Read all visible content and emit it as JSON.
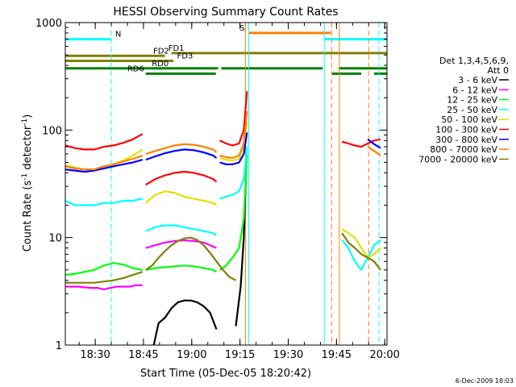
{
  "chart_data": {
    "type": "line",
    "title": "HESSI Observing Summary Count Rates",
    "xlabel": "Start Time (05-Dec-05 18:20:42)",
    "ylabel_main": "Count Rate (s",
    "ylabel_sup": "-1",
    "ylabel_tail": " detector",
    "ylabel_end": ")",
    "yscale": "log",
    "ylim": [
      1,
      1000
    ],
    "xlim_minutes": [
      0,
      100
    ],
    "x_tick_labels": [
      "18:30",
      "18:45",
      "19:00",
      "19:15",
      "19:30",
      "19:45",
      "20:00"
    ],
    "x_tick_minutes": [
      9.3,
      24.3,
      39.3,
      54.3,
      69.3,
      84.3,
      99.3
    ],
    "y_tick_labels": [
      "1",
      "10",
      "100",
      "1000"
    ],
    "y_tick_values": [
      1,
      10,
      100,
      1000
    ],
    "legend_header": [
      "Det 1,3,4,5,6,9,",
      "Att 0"
    ],
    "series": [
      {
        "name": "3 - 6 keV",
        "color": "#000000",
        "segments": [
          {
            "x": [
              27.5,
              29,
              31,
              33,
              35,
              37,
              39,
              41,
              43,
              45,
              47
            ],
            "y": [
              1.0,
              1.6,
              1.8,
              2.2,
              2.5,
              2.6,
              2.6,
              2.5,
              2.3,
              2.0,
              1.4
            ]
          },
          {
            "x": [
              53,
              54.5,
              55.5,
              56.2
            ],
            "y": [
              1.5,
              3.5,
              10,
              40
            ]
          }
        ]
      },
      {
        "name": "6 - 12 keV",
        "color": "#ff00ff",
        "segments": [
          {
            "x": [
              0,
              4,
              8,
              10,
              12,
              14,
              16,
              18,
              20,
              22,
              24
            ],
            "y": [
              3.5,
              3.5,
              3.4,
              3.4,
              3.3,
              3.4,
              3.5,
              3.5,
              3.5,
              3.6,
              3.6
            ]
          },
          {
            "x": [
              25,
              28,
              31,
              34,
              37,
              40,
              43,
              45,
              47
            ],
            "y": [
              8.0,
              8.5,
              9.0,
              9.3,
              9.4,
              9.3,
              9.0,
              8.5,
              8.0
            ]
          }
        ]
      },
      {
        "name": "12 - 25 keV",
        "color": "#00ff00",
        "segments": [
          {
            "x": [
              0,
              3,
              6,
              9,
              12,
              15,
              18,
              21,
              24
            ],
            "y": [
              4.5,
              4.6,
              4.8,
              5.0,
              5.5,
              5.8,
              5.6,
              5.2,
              5.0
            ]
          },
          {
            "x": [
              25,
              28,
              31,
              34,
              37,
              40,
              43,
              46,
              47
            ],
            "y": [
              5.0,
              5.2,
              5.3,
              5.4,
              5.5,
              5.4,
              5.2,
              5.0,
              4.8
            ]
          },
          {
            "x": [
              48,
              50,
              52,
              54,
              55.5,
              56.5
            ],
            "y": [
              5.0,
              5.5,
              6.5,
              8.0,
              15,
              60
            ]
          }
        ]
      },
      {
        "name": "25 - 50 keV",
        "color": "#00ffff",
        "segments": [
          {
            "x": [
              0,
              3,
              6,
              9,
              12,
              15,
              18,
              21,
              24
            ],
            "y": [
              22,
              20,
              20,
              20,
              21,
              21,
              22,
              22,
              23
            ]
          },
          {
            "x": [
              25,
              28,
              31,
              34,
              37,
              40,
              43,
              46,
              47
            ],
            "y": [
              11.5,
              12.5,
              13,
              13,
              12.5,
              12,
              11.5,
              11,
              10.5
            ]
          },
          {
            "x": [
              48,
              50,
              52,
              54,
              55.5,
              56.5
            ],
            "y": [
              23,
              24,
              25,
              27,
              35,
              70
            ]
          },
          {
            "x": [
              86,
              88,
              90,
              92,
              94,
              96,
              98
            ],
            "y": [
              9.5,
              8.0,
              6.0,
              5.0,
              6.5,
              8.5,
              9.5
            ]
          }
        ]
      },
      {
        "name": "50 - 100 keV",
        "color": "#e0e000",
        "segments": [
          {
            "x": [
              0,
              3,
              6,
              9,
              12,
              15,
              18,
              21,
              24
            ],
            "y": [
              47,
              45,
              43,
              43,
              45,
              48,
              52,
              58,
              66
            ]
          },
          {
            "x": [
              25,
              28,
              31,
              34,
              37,
              40,
              43,
              46,
              47
            ],
            "y": [
              21,
              25,
              27,
              26,
              24,
              23,
              22,
              21,
              20
            ]
          },
          {
            "x": [
              48,
              50,
              52,
              54,
              55.5,
              56.5
            ],
            "y": [
              55,
              53,
              52,
              54,
              70,
              120
            ]
          },
          {
            "x": [
              86,
              88,
              90,
              92,
              94,
              96,
              98
            ],
            "y": [
              12,
              11,
              10,
              8,
              6.5,
              7,
              8
            ]
          }
        ]
      },
      {
        "name": "100 - 300 keV",
        "color": "#ff0000",
        "segments": [
          {
            "x": [
              0,
              3,
              6,
              9,
              12,
              15,
              18,
              21,
              24
            ],
            "y": [
              72,
              68,
              66,
              66,
              70,
              72,
              76,
              82,
              92
            ]
          },
          {
            "x": [
              25,
              28,
              31,
              34,
              37,
              40,
              43,
              46,
              47
            ],
            "y": [
              31,
              35,
              38,
              40,
              41,
              40,
              38,
              35,
              33
            ]
          },
          {
            "x": [
              48,
              50,
              52,
              54,
              55.5,
              56.5
            ],
            "y": [
              80,
              75,
              72,
              75,
              100,
              230
            ]
          },
          {
            "x": [
              86,
              88,
              90,
              92,
              94,
              96,
              98
            ],
            "y": [
              78,
              75,
              72,
              70,
              75,
              80,
              82
            ]
          }
        ]
      },
      {
        "name": "300 - 800 keV",
        "color": "#0000ff",
        "segments": [
          {
            "x": [
              0,
              3,
              6,
              9,
              12,
              15,
              18,
              21,
              24
            ],
            "y": [
              43,
              42,
              41,
              42,
              44,
              46,
              48,
              50,
              53
            ]
          },
          {
            "x": [
              25,
              28,
              31,
              34,
              37,
              40,
              43,
              46,
              47
            ],
            "y": [
              53,
              57,
              61,
              64,
              66,
              65,
              62,
              58,
              55
            ]
          },
          {
            "x": [
              48,
              50,
              52,
              54,
              55.5,
              56.5
            ],
            "y": [
              50,
              48,
              48,
              50,
              60,
              95
            ]
          },
          {
            "x": [
              94,
              96,
              98
            ],
            "y": [
              82,
              74,
              68
            ]
          }
        ]
      },
      {
        "name": "800 - 7000 keV",
        "color": "#ff8000",
        "segments": [
          {
            "x": [
              0,
              3,
              6,
              9,
              12,
              15,
              18,
              21,
              24
            ],
            "y": [
              46,
              44,
              43,
              43,
              46,
              48,
              51,
              54,
              58
            ]
          },
          {
            "x": [
              25,
              28,
              31,
              34,
              37,
              40,
              43,
              46,
              47
            ],
            "y": [
              60,
              64,
              68,
              72,
              74,
              73,
              70,
              66,
              62
            ]
          },
          {
            "x": [
              48,
              50,
              52,
              54,
              55.5,
              56.5
            ],
            "y": [
              58,
              56,
              55,
              58,
              75,
              150
            ]
          },
          {
            "x": [
              94,
              96,
              98
            ],
            "y": [
              70,
              64,
              58
            ]
          }
        ]
      },
      {
        "name": "7000 - 20000 keV",
        "color": "#808000",
        "segments": [
          {
            "x": [
              0,
              3,
              6,
              9,
              12,
              15,
              18,
              21,
              24
            ],
            "y": [
              3.8,
              3.8,
              3.8,
              3.8,
              3.9,
              4.0,
              4.2,
              4.5,
              4.8
            ]
          },
          {
            "x": [
              25,
              27,
              29,
              31,
              33,
              35,
              37,
              39,
              41,
              43,
              45,
              47,
              49,
              51,
              53
            ],
            "y": [
              5.0,
              5.5,
              6.5,
              7.5,
              8.5,
              9.3,
              9.8,
              10,
              9.5,
              8.5,
              7.2,
              6.0,
              5.0,
              4.3,
              4.0
            ]
          },
          {
            "x": [
              86,
              88,
              90,
              92,
              94,
              96,
              98
            ],
            "y": [
              11,
              9,
              8,
              7,
              6.5,
              6,
              5
            ]
          }
        ]
      }
    ],
    "vertical_lines": [
      {
        "x": 14.3,
        "color": "#00ffff",
        "style": "dashed"
      },
      {
        "x": 56.0,
        "color": "#ff8000",
        "style": "solid"
      },
      {
        "x": 57.0,
        "color": "#00ffff",
        "style": "solid"
      },
      {
        "x": 80.5,
        "color": "#00ffff",
        "style": "solid"
      },
      {
        "x": 82.8,
        "color": "#ff8000",
        "style": "dashed"
      },
      {
        "x": 85.2,
        "color": "#ff8000",
        "style": "solid"
      },
      {
        "x": 94.3,
        "color": "#ff8000",
        "style": "dashed"
      },
      {
        "x": 97.5,
        "color": "#00ffff",
        "style": "dashed"
      }
    ],
    "flag_bars": [
      {
        "label": "N",
        "color": "#00ffff",
        "y": 700,
        "segments": [
          [
            0,
            14.2
          ],
          [
            80.5,
            100
          ]
        ],
        "label_x": 15.5,
        "label_anchor": "start"
      },
      {
        "label": "S",
        "color": "#ff8000",
        "y": 800,
        "segments": [
          [
            57,
            82.5
          ]
        ],
        "label_x": 55.8,
        "label_anchor": "end"
      },
      {
        "label": "FD1",
        "color": "#808000",
        "y": 520,
        "segments": [
          [
            33,
            100
          ]
        ],
        "label_x": 34.5,
        "label_anchor": "middle"
      },
      {
        "label": "FD2",
        "color": "#808000",
        "y": 490,
        "segments": [
          [
            0,
            31
          ]
        ],
        "label_x": 29.8,
        "label_anchor": "middle"
      },
      {
        "label": "FD3",
        "color": "#808000",
        "y": 440,
        "segments": [
          [
            0,
            33.6
          ]
        ],
        "label_x": 37.2,
        "label_anchor": "middle"
      },
      {
        "label": "RD0",
        "color": "#008000",
        "y": 375,
        "segments": [
          [
            0,
            47.5
          ],
          [
            48.5,
            80
          ],
          [
            85,
            100
          ]
        ],
        "label_x": 29.5,
        "label_anchor": "middle"
      },
      {
        "label": "RD6",
        "color": "#008000",
        "y": 335,
        "segments": [
          [
            25,
            46.8
          ],
          [
            83,
            92
          ],
          [
            96,
            100
          ]
        ],
        "label_x": 21.9,
        "label_anchor": "middle"
      }
    ],
    "grid": false,
    "legend_position": "right",
    "footer_date": "6-Dec-2009 18:03"
  }
}
